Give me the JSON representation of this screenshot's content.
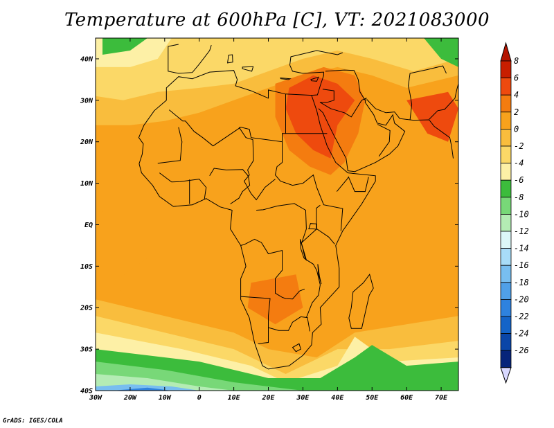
{
  "title": "Temperature at 600hPa [C], VT: 2021083000",
  "credit": "GrADS: IGES/COLA",
  "map": {
    "lon_range": [
      -30,
      75
    ],
    "lat_range": [
      -40,
      45
    ],
    "lon_ticks": [
      {
        "value": -30,
        "label": "30W"
      },
      {
        "value": -20,
        "label": "20W"
      },
      {
        "value": -10,
        "label": "10W"
      },
      {
        "value": 0,
        "label": "0"
      },
      {
        "value": 10,
        "label": "10E"
      },
      {
        "value": 20,
        "label": "20E"
      },
      {
        "value": 30,
        "label": "30E"
      },
      {
        "value": 40,
        "label": "40E"
      },
      {
        "value": 50,
        "label": "50E"
      },
      {
        "value": 60,
        "label": "60E"
      },
      {
        "value": 70,
        "label": "70E"
      }
    ],
    "lat_ticks": [
      {
        "value": 40,
        "label": "40N"
      },
      {
        "value": 30,
        "label": "30N"
      },
      {
        "value": 20,
        "label": "20N"
      },
      {
        "value": 10,
        "label": "10N"
      },
      {
        "value": 0,
        "label": "EQ"
      },
      {
        "value": -10,
        "label": "10S"
      },
      {
        "value": -20,
        "label": "20S"
      },
      {
        "value": -30,
        "label": "30S"
      },
      {
        "value": -40,
        "label": "40S"
      }
    ]
  },
  "colorbar": {
    "levels": [
      {
        "label": "8",
        "color": "#c81e00"
      },
      {
        "label": "6",
        "color": "#ee4a0e"
      },
      {
        "label": "4",
        "color": "#f47c10"
      },
      {
        "label": "2",
        "color": "#f8a21c"
      },
      {
        "label": "0",
        "color": "#f9bd3d"
      },
      {
        "label": "-2",
        "color": "#fbd867"
      },
      {
        "label": "-4",
        "color": "#fdf0a6"
      },
      {
        "label": "-6",
        "color": "#3cbc3c"
      },
      {
        "label": "-8",
        "color": "#78d878"
      },
      {
        "label": "-10",
        "color": "#b4ecb4"
      },
      {
        "label": "-12",
        "color": "#dcf8f8"
      },
      {
        "label": "-14",
        "color": "#a8dcf8"
      },
      {
        "label": "-16",
        "color": "#78bef0"
      },
      {
        "label": "-18",
        "color": "#50a0e8"
      },
      {
        "label": "-20",
        "color": "#2e82de"
      },
      {
        "label": "-22",
        "color": "#1464c8"
      },
      {
        "label": "-24",
        "color": "#0a46a8"
      },
      {
        "label": "-26",
        "color": "#06247a"
      }
    ],
    "top_color": "#b41400",
    "bottom_color": "#d8d8ff"
  },
  "palette": {
    "hot": "#ee4a0e",
    "warm": "#f47c10",
    "mid": "#f8a21c",
    "mild": "#f9bd3d",
    "cool": "#fbd867",
    "cold": "#fdf0a6",
    "green": "#3cbc3c",
    "lightgreen": "#78d878",
    "palegreen": "#b4ecb4",
    "blue": "#78bef0",
    "deepblue": "#2e82de",
    "coast": "#000000"
  }
}
